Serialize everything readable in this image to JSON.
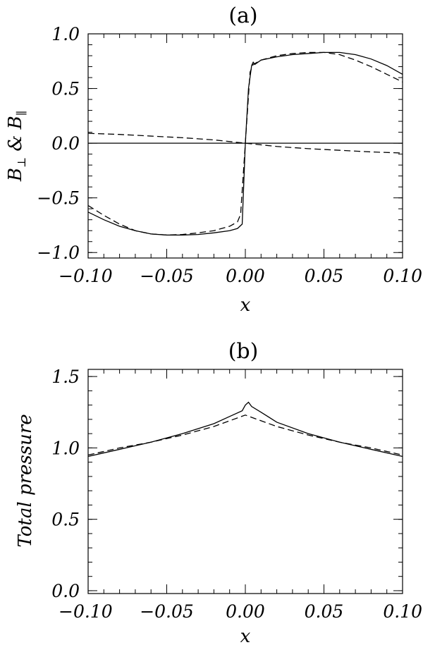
{
  "chart_data": [
    {
      "type": "line",
      "title": "(a)",
      "xlabel": "x",
      "ylabel_main": "B",
      "ylabel_sub1": "⊥",
      "ylabel_mid": " & B",
      "ylabel_sub2": "∥",
      "xlim": [
        -0.1,
        0.1
      ],
      "ylim": [
        -1.05,
        1.0
      ],
      "xticks": [
        -0.1,
        -0.05,
        0.0,
        0.05,
        0.1
      ],
      "xtick_labels": [
        "−0.10",
        "−0.05",
        "0.00",
        "0.05",
        "0.10"
      ],
      "yticks": [
        -1.0,
        -0.5,
        0.0,
        0.5,
        1.0
      ],
      "ytick_labels": [
        "−1.0",
        "−0.5",
        "0.0",
        "0.5",
        "1.0"
      ],
      "series": [
        {
          "style": "solid",
          "x": [
            -0.1,
            -0.09,
            -0.08,
            -0.07,
            -0.06,
            -0.05,
            -0.04,
            -0.03,
            -0.02,
            -0.01,
            -0.005,
            -0.002,
            0.0,
            0.002,
            0.004,
            0.005,
            0.006,
            0.008,
            0.01,
            0.02,
            0.03,
            0.04,
            0.05,
            0.06,
            0.07,
            0.08,
            0.09,
            0.1
          ],
          "y": [
            -0.63,
            -0.7,
            -0.76,
            -0.8,
            -0.83,
            -0.84,
            -0.84,
            -0.835,
            -0.82,
            -0.8,
            -0.78,
            -0.74,
            -0.0,
            0.5,
            0.71,
            0.74,
            0.72,
            0.74,
            0.76,
            0.79,
            0.81,
            0.82,
            0.83,
            0.83,
            0.81,
            0.77,
            0.71,
            0.63
          ]
        },
        {
          "style": "dashed",
          "x": [
            -0.1,
            -0.09,
            -0.08,
            -0.07,
            -0.06,
            -0.05,
            -0.04,
            -0.03,
            -0.02,
            -0.01,
            -0.005,
            -0.003,
            0.0,
            0.003,
            0.005,
            0.01,
            0.02,
            0.03,
            0.04,
            0.05,
            0.06,
            0.07,
            0.08,
            0.09,
            0.1
          ],
          "y": [
            -0.57,
            -0.66,
            -0.74,
            -0.8,
            -0.83,
            -0.84,
            -0.835,
            -0.82,
            -0.8,
            -0.76,
            -0.72,
            -0.65,
            0.0,
            0.65,
            0.72,
            0.76,
            0.8,
            0.82,
            0.83,
            0.83,
            0.81,
            0.76,
            0.7,
            0.63,
            0.56
          ]
        },
        {
          "style": "solid",
          "x": [
            -0.1,
            0.1
          ],
          "y": [
            0.0,
            0.0
          ]
        },
        {
          "style": "dashed",
          "x": [
            -0.1,
            -0.08,
            -0.06,
            -0.04,
            -0.02,
            0.0,
            0.02,
            0.04,
            0.06,
            0.08,
            0.1
          ],
          "y": [
            0.09,
            0.08,
            0.065,
            0.05,
            0.03,
            0.0,
            -0.03,
            -0.05,
            -0.065,
            -0.08,
            -0.09
          ]
        }
      ]
    },
    {
      "type": "line",
      "title": "(b)",
      "xlabel": "x",
      "ylabel": "Total pressure",
      "xlim": [
        -0.1,
        0.1
      ],
      "ylim": [
        -0.02,
        1.55
      ],
      "xticks": [
        -0.1,
        -0.05,
        0.0,
        0.05,
        0.1
      ],
      "xtick_labels": [
        "−0.10",
        "−0.05",
        "0.00",
        "0.05",
        "0.10"
      ],
      "yticks": [
        0.0,
        0.5,
        1.0,
        1.5
      ],
      "ytick_labels": [
        "0.0",
        "0.5",
        "1.0",
        "1.5"
      ],
      "series": [
        {
          "style": "solid",
          "x": [
            -0.1,
            -0.08,
            -0.06,
            -0.04,
            -0.02,
            -0.01,
            -0.002,
            0.0,
            0.002,
            0.004,
            0.01,
            0.02,
            0.04,
            0.06,
            0.08,
            0.1
          ],
          "y": [
            0.94,
            0.99,
            1.04,
            1.1,
            1.17,
            1.22,
            1.26,
            1.3,
            1.32,
            1.29,
            1.25,
            1.18,
            1.1,
            1.04,
            0.99,
            0.94
          ]
        },
        {
          "style": "dashed",
          "x": [
            -0.1,
            -0.08,
            -0.06,
            -0.04,
            -0.02,
            -0.01,
            0.0,
            0.01,
            0.02,
            0.04,
            0.06,
            0.08,
            0.1
          ],
          "y": [
            0.95,
            1.0,
            1.04,
            1.09,
            1.15,
            1.19,
            1.23,
            1.19,
            1.15,
            1.09,
            1.04,
            1.0,
            0.95
          ]
        }
      ]
    }
  ]
}
